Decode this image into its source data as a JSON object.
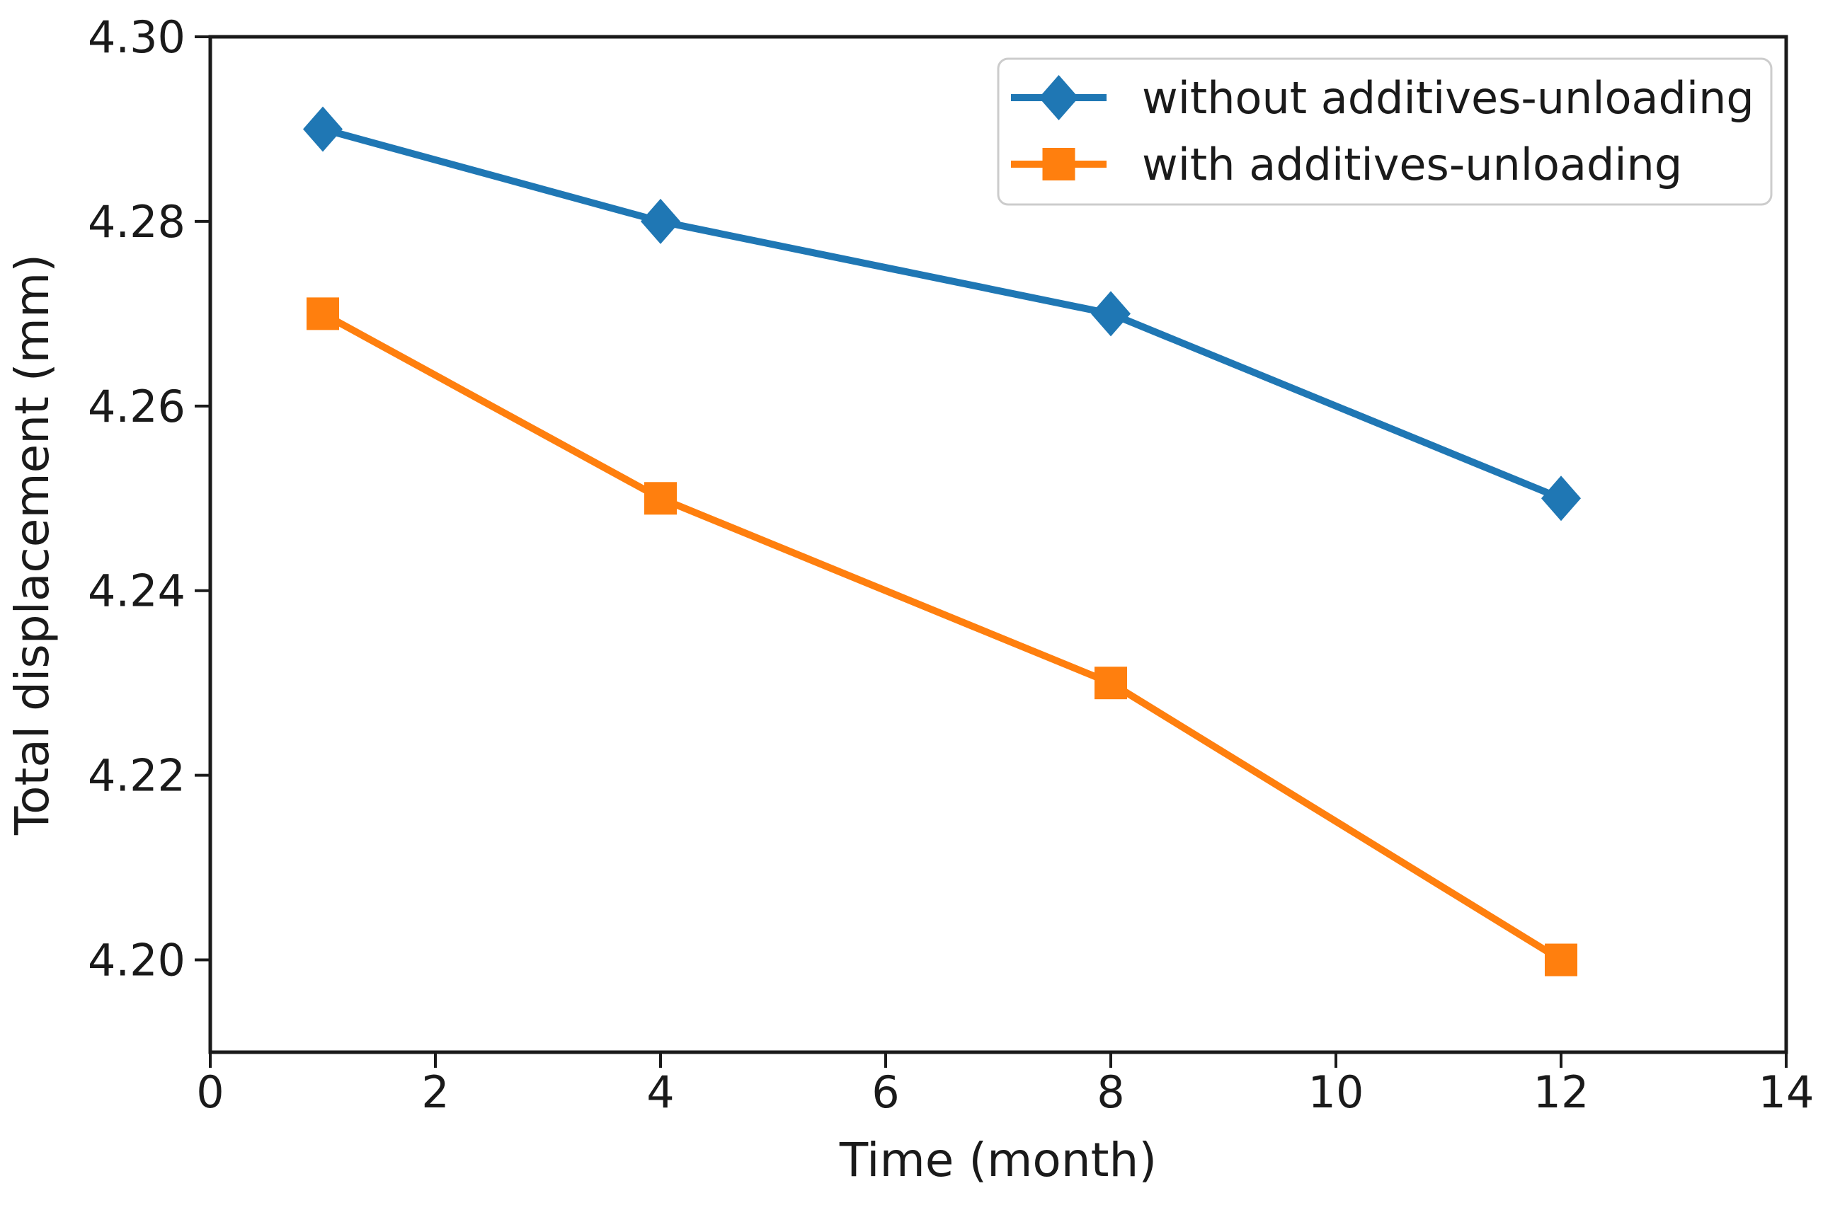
{
  "figure": {
    "background": "#ffffff"
  },
  "chart_data": {
    "type": "line",
    "title": "",
    "xlabel": "Time (month)",
    "ylabel": "Total displacement (mm)",
    "x": [
      1,
      4,
      8,
      12
    ],
    "series": [
      {
        "name": "without additives-unloading",
        "marker": "diamond",
        "color": "#1f77b4",
        "values": [
          4.29,
          4.28,
          4.27,
          4.25
        ]
      },
      {
        "name": "with additives-unloading",
        "marker": "square",
        "color": "#ff7f0e",
        "values": [
          4.27,
          4.25,
          4.23,
          4.2
        ]
      }
    ],
    "xlim": [
      0,
      14
    ],
    "ylim": [
      4.19,
      4.3
    ],
    "xticks": [
      "0",
      "2",
      "4",
      "6",
      "8",
      "10",
      "12",
      "14"
    ],
    "yticks": [
      "4.20",
      "4.22",
      "4.24",
      "4.26",
      "4.28",
      "4.30"
    ],
    "grid": false,
    "legend_position": "upper right",
    "axis_color": "#1a1a1a",
    "text_color": "#1a1a1a",
    "legend_border_color": "#cccccc",
    "legend_background": "#ffffff",
    "line_width": 10
  }
}
